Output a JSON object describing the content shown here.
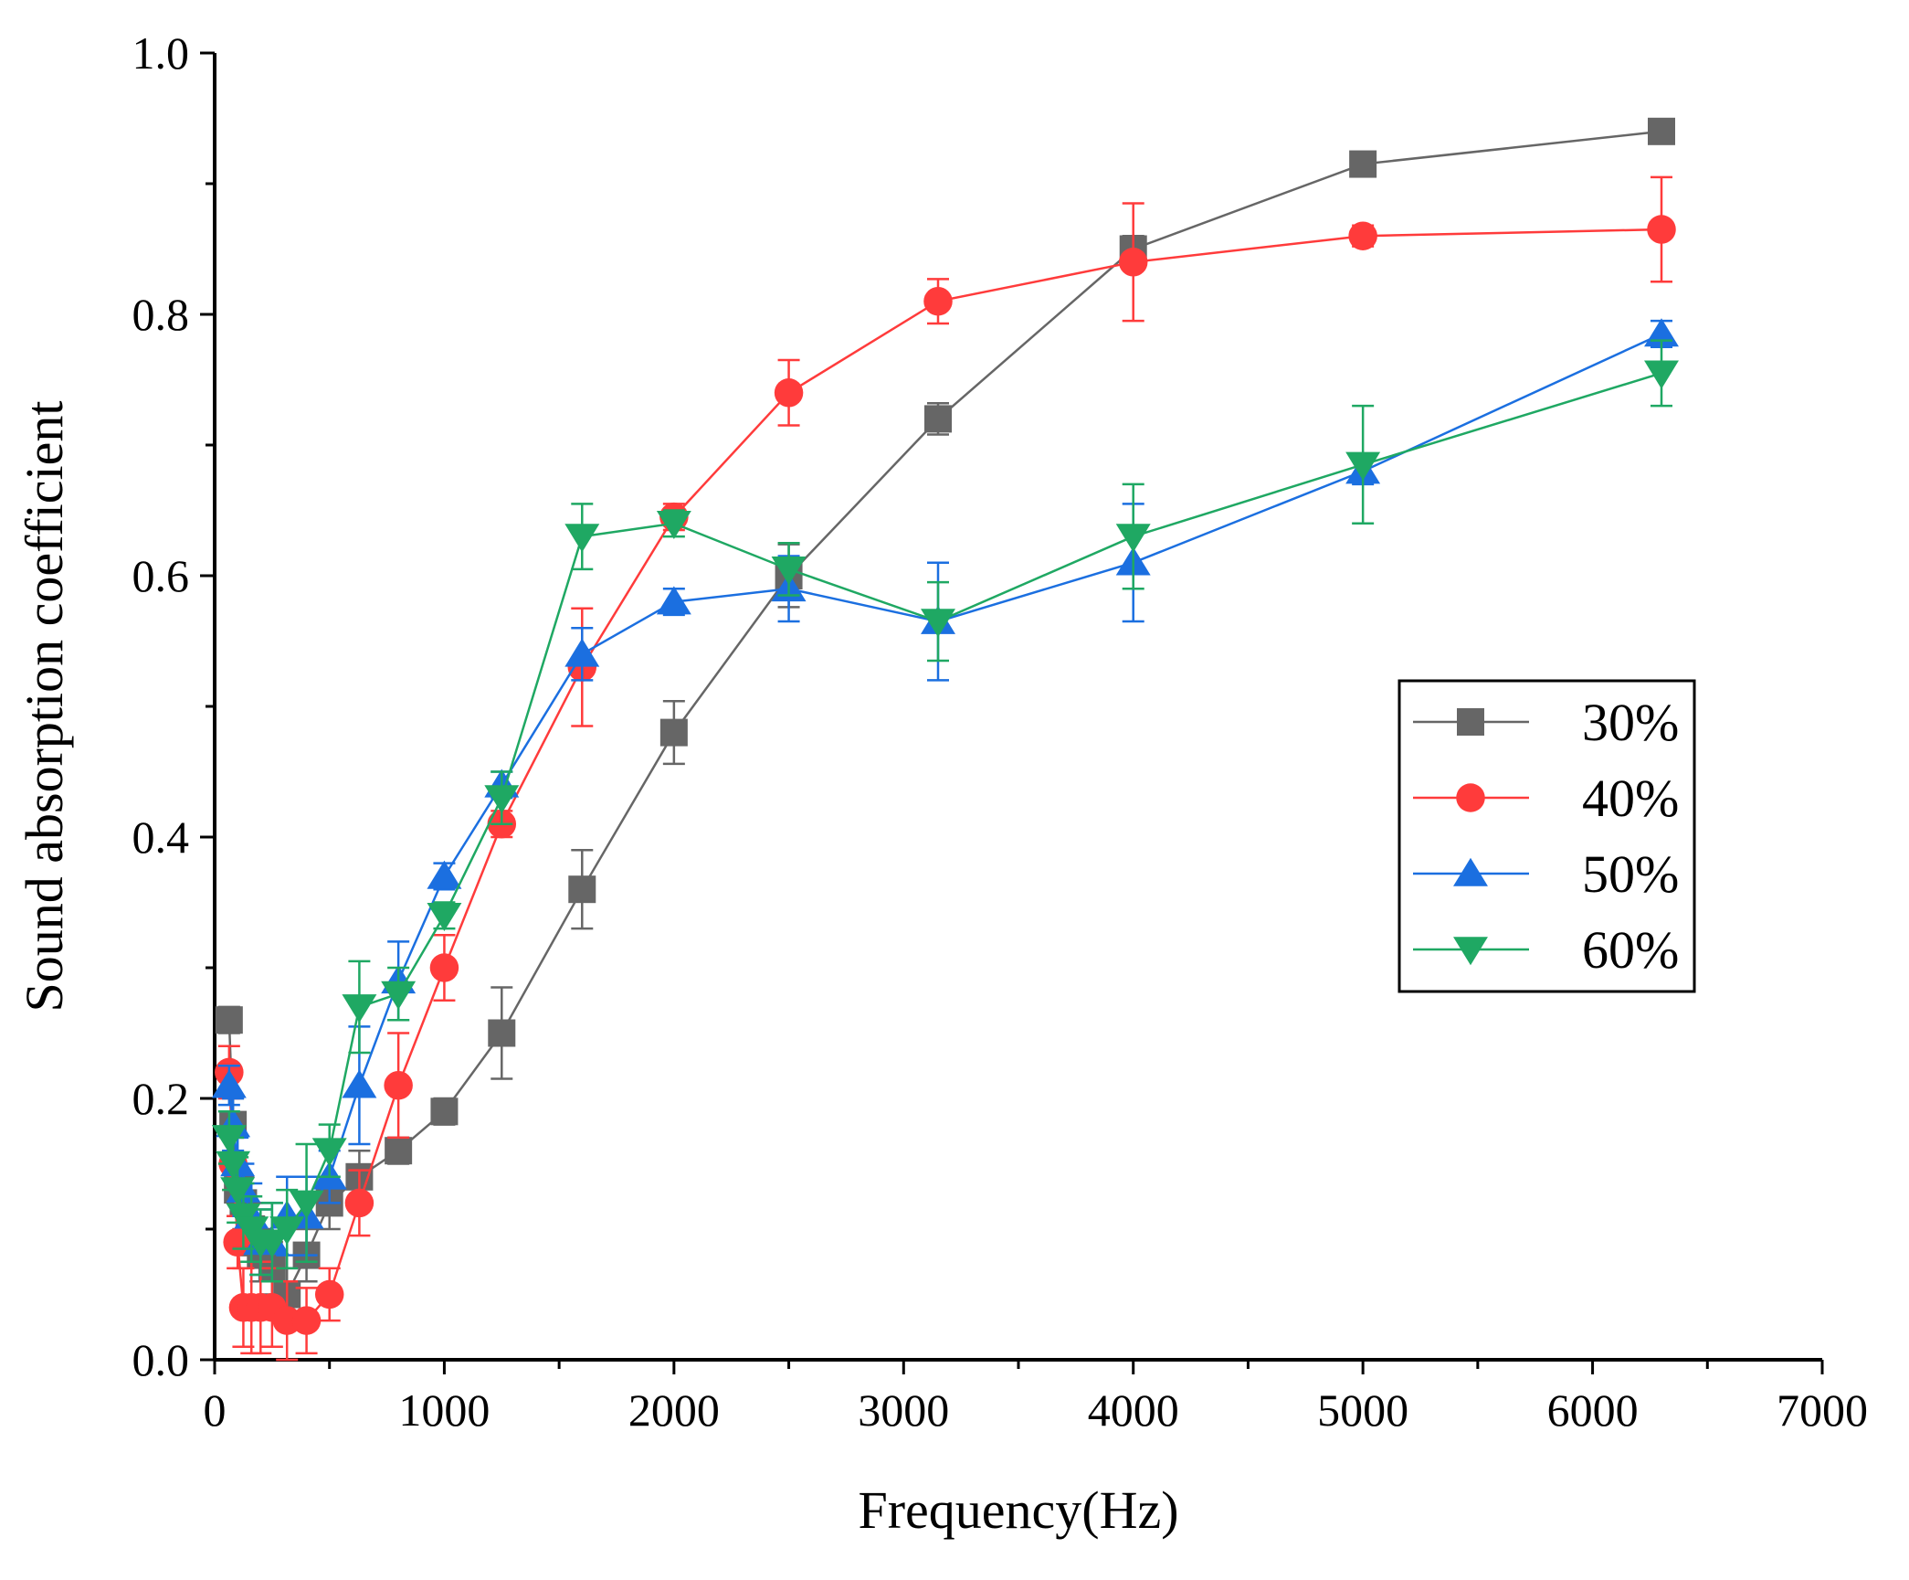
{
  "chart_data": {
    "type": "line",
    "title": "",
    "xlabel": "Frequency(Hz)",
    "ylabel": "Sound absorption coefficient",
    "xlim": [
      0,
      7000
    ],
    "ylim": [
      0,
      1.0
    ],
    "xticks": [
      0,
      1000,
      2000,
      3000,
      4000,
      5000,
      6000,
      7000
    ],
    "xtick_labels": [
      "0",
      "1000",
      "2000",
      "3000",
      "4000",
      "5000",
      "6000",
      "7000"
    ],
    "yticks": [
      0,
      0.2,
      0.4,
      0.6,
      0.8,
      1.0
    ],
    "ytick_labels": [
      "0.0",
      "0.2",
      "0.4",
      "0.6",
      "0.8",
      "1.0"
    ],
    "grid": false,
    "legend_position": "center-right",
    "x": [
      63,
      80,
      100,
      125,
      160,
      200,
      250,
      315,
      400,
      500,
      630,
      800,
      1000,
      1250,
      1600,
      2000,
      2500,
      3150,
      4000,
      5000,
      6300
    ],
    "series": [
      {
        "name": "30%",
        "color": "#666666",
        "marker": "square",
        "values": [
          0.26,
          0.18,
          0.13,
          0.12,
          0.1,
          0.08,
          0.07,
          0.05,
          0.08,
          0.12,
          0.14,
          0.16,
          0.19,
          0.25,
          0.36,
          0.48,
          0.6,
          0.72,
          0.85,
          0.915,
          0.94
        ],
        "errors": [
          0.01,
          0.02,
          0.02,
          0.02,
          0.02,
          0.02,
          0.02,
          0.02,
          0.02,
          0.02,
          0.02,
          0.01,
          0.01,
          0.035,
          0.03,
          0.024,
          0.024,
          0.012,
          0.01,
          0.008,
          0.008
        ]
      },
      {
        "name": "40%",
        "color": "#FF3B3B",
        "marker": "circle",
        "values": [
          0.22,
          0.15,
          0.09,
          0.04,
          0.04,
          0.04,
          0.04,
          0.03,
          0.03,
          0.05,
          0.12,
          0.21,
          0.3,
          0.41,
          0.53,
          0.645,
          0.74,
          0.81,
          0.84,
          0.86,
          0.865
        ],
        "errors": [
          0.02,
          0.02,
          0.02,
          0.03,
          0.035,
          0.035,
          0.03,
          0.03,
          0.025,
          0.02,
          0.025,
          0.04,
          0.025,
          0.01,
          0.045,
          0.01,
          0.025,
          0.017,
          0.045,
          0.008,
          0.04
        ]
      },
      {
        "name": "50%",
        "color": "#1B6FE0",
        "marker": "triangle-up",
        "values": [
          0.21,
          0.18,
          0.15,
          0.13,
          0.11,
          0.09,
          0.09,
          0.11,
          0.11,
          0.14,
          0.21,
          0.29,
          0.37,
          0.44,
          0.54,
          0.58,
          0.59,
          0.565,
          0.61,
          0.68,
          0.785
        ],
        "errors": [
          0.015,
          0.02,
          0.02,
          0.02,
          0.025,
          0.025,
          0.03,
          0.03,
          0.03,
          0.02,
          0.045,
          0.03,
          0.01,
          0.01,
          0.02,
          0.01,
          0.025,
          0.045,
          0.045,
          0.01,
          0.01
        ]
      },
      {
        "name": "60%",
        "color": "#1FA863",
        "marker": "triangle-down",
        "values": [
          0.17,
          0.15,
          0.13,
          0.11,
          0.1,
          0.09,
          0.09,
          0.1,
          0.12,
          0.16,
          0.27,
          0.28,
          0.34,
          0.43,
          0.63,
          0.64,
          0.605,
          0.565,
          0.63,
          0.685,
          0.755
        ],
        "errors": [
          0.02,
          0.02,
          0.025,
          0.025,
          0.025,
          0.025,
          0.03,
          0.03,
          0.045,
          0.02,
          0.035,
          0.02,
          0.01,
          0.02,
          0.025,
          0.01,
          0.02,
          0.03,
          0.04,
          0.045,
          0.025
        ]
      }
    ]
  }
}
